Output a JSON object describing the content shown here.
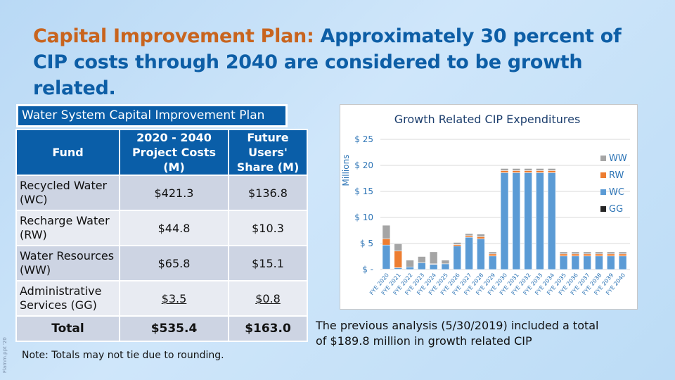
{
  "title": {
    "lead": "Capital Improvement Plan:",
    "rest": " Approximately 30 percent of CIP costs through 2040 are considered to be growth related."
  },
  "table": {
    "title": "Water System Capital Improvement Plan",
    "headers": [
      "Fund",
      "2020 - 2040 Project Costs (M)",
      "Future Users' Share (M)"
    ],
    "rows": [
      {
        "fund": "Recycled Water (WC)",
        "cost": "$421.3",
        "share": "$136.8"
      },
      {
        "fund": "Recharge Water (RW)",
        "cost": "$44.8",
        "share": "$10.3"
      },
      {
        "fund": "Water Resources (WW)",
        "cost": "$65.8",
        "share": "$15.1"
      },
      {
        "fund": "Administrative Services (GG)",
        "cost": "$3.5",
        "share": "$0.8"
      }
    ],
    "total": {
      "fund": "Total",
      "cost": "$535.4",
      "share": "$163.0"
    }
  },
  "note": "Note: Totals may not tie due to rounding.",
  "side_text": "Flamm.ppt '20",
  "previous": "The previous analysis (5/30/2019) included a total of $189.8 million in growth related CIP",
  "chart_data": {
    "type": "bar",
    "stacked": true,
    "title": "Growth Related CIP Expenditures",
    "ylabel": "Millions",
    "ylim": [
      0,
      25
    ],
    "yticks": [
      0,
      5,
      10,
      15,
      20,
      25
    ],
    "ytick_labels": [
      "$ -",
      "$ 5",
      "$ 10",
      "$ 15",
      "$ 20",
      "$ 25"
    ],
    "grid": true,
    "legend": "right",
    "categories": [
      "FYE 2020",
      "FYE 2021",
      "FYE 2022",
      "FYE 2023",
      "FYE 2024",
      "FYE 2025",
      "FYE 2026",
      "FYE 2027",
      "FYE 2028",
      "FYE 2029",
      "FYE 2030",
      "FYE 2031",
      "FYE 2032",
      "FYE 2033",
      "FYE 2034",
      "FYE 2035",
      "FYE 2036",
      "FYE 2037",
      "FYE 2038",
      "FYE 2039",
      "FYE 2040"
    ],
    "series": [
      {
        "name": "GG",
        "color": "#262626",
        "values": [
          0.1,
          0.05,
          0,
          0,
          0,
          0,
          0,
          0,
          0,
          0,
          0,
          0,
          0,
          0,
          0,
          0,
          0,
          0,
          0,
          0,
          0
        ]
      },
      {
        "name": "WC",
        "color": "#5b9bd5",
        "values": [
          4.6,
          0.3,
          0.5,
          1.3,
          1.0,
          1.1,
          4.5,
          6.2,
          5.9,
          2.6,
          18.6,
          18.6,
          18.6,
          18.6,
          18.6,
          2.6,
          2.6,
          2.6,
          2.6,
          2.6,
          2.6
        ]
      },
      {
        "name": "RW",
        "color": "#ed7d31",
        "values": [
          1.2,
          3.2,
          0,
          0,
          0.1,
          0,
          0.3,
          0.3,
          0.4,
          0.4,
          0.4,
          0.4,
          0.4,
          0.4,
          0.4,
          0.4,
          0.4,
          0.4,
          0.4,
          0.4,
          0.4
        ]
      },
      {
        "name": "WW",
        "color": "#a5a5a5",
        "values": [
          2.6,
          1.4,
          1.3,
          1.2,
          2.3,
          0.7,
          0.4,
          0.4,
          0.5,
          0.4,
          0.4,
          0.4,
          0.4,
          0.4,
          0.4,
          0.4,
          0.4,
          0.4,
          0.4,
          0.4,
          0.4
        ]
      }
    ],
    "legend_order": [
      "WW",
      "RW",
      "WC",
      "GG"
    ]
  }
}
